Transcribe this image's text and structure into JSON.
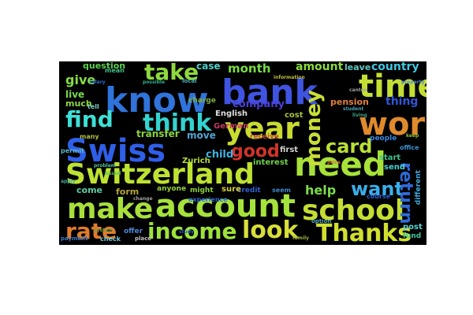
{
  "wordcloud": {
    "background": "#000000",
    "words": [
      {
        "text": "bank",
        "color": "#3f54e0"
      },
      {
        "text": "know",
        "color": "#2f73db"
      },
      {
        "text": "year",
        "color": "#c9db2f"
      },
      {
        "text": "Swiss",
        "color": "#2f5fe8"
      },
      {
        "text": "Switzerland",
        "color": "#bde233"
      },
      {
        "text": "need",
        "color": "#a7e13a"
      },
      {
        "text": "work",
        "color": "#e08a2c"
      },
      {
        "text": "account",
        "color": "#a5e23b"
      },
      {
        "text": "make",
        "color": "#a8df3b"
      },
      {
        "text": "school",
        "color": "#c5de34"
      },
      {
        "text": "time",
        "color": "#c4de34"
      },
      {
        "text": "find",
        "color": "#3de0d6"
      },
      {
        "text": "think",
        "color": "#33d3d0"
      },
      {
        "text": "take",
        "color": "#8fd93f"
      },
      {
        "text": "income",
        "color": "#9ee23c"
      },
      {
        "text": "look",
        "color": "#d8de39"
      },
      {
        "text": "Thanks",
        "color": "#d1df2f"
      },
      {
        "text": "rate",
        "color": "#e17b2c"
      },
      {
        "text": "card",
        "color": "#b9e036"
      },
      {
        "text": "want",
        "color": "#3aaeea"
      },
      {
        "text": "money",
        "color": "#c9de37"
      },
      {
        "text": "good",
        "color": "#d2332b"
      },
      {
        "text": "return",
        "color": "#2f6ad8"
      },
      {
        "text": "help",
        "color": "#7bdc47"
      },
      {
        "text": "give",
        "color": "#86de43"
      },
      {
        "text": "month",
        "color": "#79dc44"
      },
      {
        "text": "amount",
        "color": "#8ddb3f"
      },
      {
        "text": "country",
        "color": "#3fc7e3"
      },
      {
        "text": "thing",
        "color": "#2f56d8"
      },
      {
        "text": "company",
        "color": "#4a3fd6"
      },
      {
        "text": "question",
        "color": "#5bd24c"
      },
      {
        "text": "case",
        "color": "#4fd0c8"
      },
      {
        "text": "live",
        "color": "#7ad94a"
      },
      {
        "text": "much",
        "color": "#8ed53f"
      },
      {
        "text": "pension",
        "color": "#e0803c"
      },
      {
        "text": "leave",
        "color": "#5fc8bf"
      },
      {
        "text": "child",
        "color": "#3fb0e0"
      },
      {
        "text": "transfer",
        "color": "#8bd43f"
      },
      {
        "text": "move",
        "color": "#4fa6d5"
      },
      {
        "text": "Zurich",
        "color": "#b8df3b"
      },
      {
        "text": "German",
        "color": "#c33a62"
      },
      {
        "text": "English",
        "color": "#e0e0e0"
      },
      {
        "text": "interest",
        "color": "#6fd04a"
      },
      {
        "text": "credit",
        "color": "#2f5fd0"
      },
      {
        "text": "come",
        "color": "#57cfa5"
      },
      {
        "text": "form",
        "color": "#b5a339"
      },
      {
        "text": "anyone",
        "color": "#96d13f"
      },
      {
        "text": "might",
        "color": "#8ed13f"
      },
      {
        "text": "sure",
        "color": "#d4cd3a"
      },
      {
        "text": "permit",
        "color": "#58b5c8"
      },
      {
        "text": "cost",
        "color": "#a8c13f"
      },
      {
        "text": "first",
        "color": "#d0d0d0"
      },
      {
        "text": "send",
        "color": "#4ad0d0"
      },
      {
        "text": "start",
        "color": "#3fc08a"
      },
      {
        "text": "people",
        "color": "#3f86e0"
      },
      {
        "text": "offer",
        "color": "#4f86d8"
      },
      {
        "text": "check",
        "color": "#6fc8d8"
      },
      {
        "text": "payment",
        "color": "#3f78c8"
      },
      {
        "text": "option",
        "color": "#4fa6d0"
      },
      {
        "text": "post",
        "color": "#5acfd2"
      },
      {
        "text": "fund",
        "color": "#3fc5a0"
      },
      {
        "text": "different",
        "color": "#3fa6d8"
      },
      {
        "text": "receive",
        "color": "#c24a3a"
      },
      {
        "text": "experience",
        "color": "#2f6ad0"
      },
      {
        "text": "charge",
        "color": "#7fb03f"
      },
      {
        "text": "local",
        "color": "#4fb0c0"
      },
      {
        "text": "mean",
        "color": "#3fc08a"
      },
      {
        "text": "many",
        "color": "#b0c040"
      },
      {
        "text": "tell",
        "color": "#7ad0c0"
      },
      {
        "text": "place",
        "color": "#c0c0c0"
      },
      {
        "text": "course",
        "color": "#2f5fd0"
      },
      {
        "text": "office",
        "color": "#3f8fd0"
      },
      {
        "text": "change",
        "color": "#a0a0a0"
      },
      {
        "text": "seem",
        "color": "#3f86c8"
      },
      {
        "text": "canton",
        "color": "#a0a0a0"
      },
      {
        "text": "student",
        "color": "#4fa0b0"
      },
      {
        "text": "system",
        "color": "#70a040"
      },
      {
        "text": "salary",
        "color": "#2f6ad0"
      },
      {
        "text": "problem",
        "color": "#4fc0a0"
      },
      {
        "text": "apply",
        "color": "#3fb0a0"
      },
      {
        "text": "possible",
        "color": "#2fb090"
      },
      {
        "text": "information",
        "color": "#c0c040"
      },
      {
        "text": "family",
        "color": "#9fb03f"
      },
      {
        "text": "living",
        "color": "#3fa08a"
      },
      {
        "text": "based",
        "color": "#5fbf5f"
      },
      {
        "text": "price",
        "color": "#d07040"
      },
      {
        "text": "property",
        "color": "#4f8fd0"
      },
      {
        "text": "study",
        "color": "#2f5fc0"
      },
      {
        "text": "keep",
        "color": "#8fbf3f"
      }
    ]
  }
}
